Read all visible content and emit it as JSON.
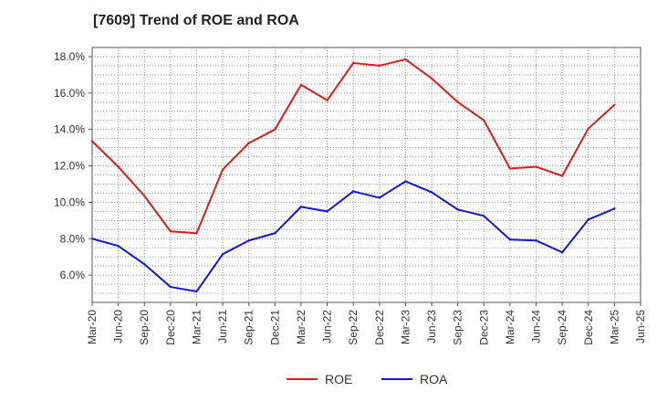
{
  "chart_data": {
    "type": "line",
    "title": "[7609]  Trend of ROE and ROA",
    "xlabel": "",
    "ylabel": "",
    "categories": [
      "Mar-20",
      "Jun-20",
      "Sep-20",
      "Dec-20",
      "Mar-21",
      "Jun-21",
      "Sep-21",
      "Dec-21",
      "Mar-22",
      "Jun-22",
      "Sep-22",
      "Dec-22",
      "Mar-23",
      "Jun-23",
      "Sep-23",
      "Dec-23",
      "Mar-24",
      "Jun-24",
      "Sep-24",
      "Dec-24",
      "Mar-25",
      "Jun-25"
    ],
    "ylim": [
      4.5,
      18.5
    ],
    "yticks": [
      6.0,
      8.0,
      10.0,
      12.0,
      14.0,
      16.0,
      18.0
    ],
    "ytick_labels": [
      "6.0%",
      "8.0%",
      "10.0%",
      "12.0%",
      "14.0%",
      "16.0%",
      "18.0%"
    ],
    "grid": true,
    "legend_position": "bottom",
    "series": [
      {
        "name": "ROE",
        "color": "#e31a1c",
        "values": [
          13.35,
          11.95,
          10.35,
          8.4,
          8.3,
          11.8,
          13.25,
          14.0,
          16.45,
          15.6,
          17.65,
          17.5,
          17.85,
          16.8,
          15.5,
          14.5,
          11.85,
          11.95,
          11.45,
          14.05,
          15.35,
          null
        ]
      },
      {
        "name": "ROA",
        "color": "#1414e6",
        "values": [
          8.0,
          7.6,
          6.6,
          5.35,
          5.1,
          7.15,
          7.9,
          8.3,
          9.75,
          9.5,
          10.6,
          10.25,
          11.15,
          10.55,
          9.6,
          9.25,
          7.95,
          7.9,
          7.25,
          9.05,
          9.65,
          null
        ]
      }
    ]
  }
}
